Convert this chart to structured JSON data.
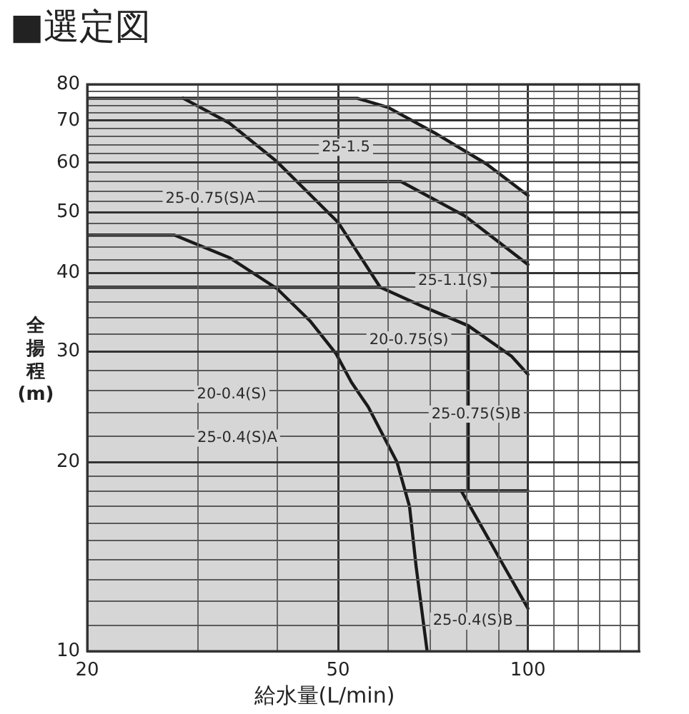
{
  "chart_data": {
    "type": "line",
    "title": "■選定図",
    "xlabel": "給水量(L/min)",
    "ylabel": "全揚程(m)",
    "log": "xy",
    "grid": true,
    "marker": "none",
    "xlim": [
      20,
      150
    ],
    "ylim": [
      10,
      80
    ],
    "xticks": [
      20,
      {
        "value": 30,
        "label": null
      },
      {
        "value": 40,
        "label": null
      },
      50,
      {
        "value": 60,
        "label": null
      },
      {
        "value": 70,
        "label": null
      },
      {
        "value": 80,
        "label": null
      },
      {
        "value": 90,
        "label": null
      },
      100,
      {
        "value": 110,
        "label": null
      },
      {
        "value": 120,
        "label": null
      },
      {
        "value": 130,
        "label": null
      },
      {
        "value": 140,
        "label": null
      }
    ],
    "yticks": [
      10,
      {
        "value": 11,
        "label": null
      },
      {
        "value": 12,
        "label": null
      },
      {
        "value": 13,
        "label": null
      },
      {
        "value": 14,
        "label": null
      },
      {
        "value": 15,
        "label": null
      },
      {
        "value": 16,
        "label": null
      },
      {
        "value": 17,
        "label": null
      },
      {
        "value": 18,
        "label": null
      },
      {
        "value": 19,
        "label": null
      },
      20,
      {
        "value": 22,
        "label": null
      },
      {
        "value": 24,
        "label": null
      },
      {
        "value": 26,
        "label": null
      },
      {
        "value": 28,
        "label": null
      },
      30,
      {
        "value": 32,
        "label": null
      },
      {
        "value": 34,
        "label": null
      },
      {
        "value": 36,
        "label": null
      },
      {
        "value": 38,
        "label": null
      },
      40,
      {
        "value": 42,
        "label": null
      },
      {
        "value": 44,
        "label": null
      },
      {
        "value": 46,
        "label": null
      },
      {
        "value": 48,
        "label": null
      },
      50,
      {
        "value": 52,
        "label": null
      },
      {
        "value": 54,
        "label": null
      },
      {
        "value": 56,
        "label": null
      },
      {
        "value": 58,
        "label": null
      },
      60,
      {
        "value": 62,
        "label": null
      },
      {
        "value": 64,
        "label": null
      },
      {
        "value": 66,
        "label": null
      },
      {
        "value": 68,
        "label": null
      },
      70,
      {
        "value": 72,
        "label": null
      },
      {
        "value": 74,
        "label": null
      },
      {
        "value": 76,
        "label": null
      },
      {
        "value": 78,
        "label": null
      },
      80
    ],
    "series": [
      {
        "type": "area",
        "color": "#d6d6d6",
        "x": [
          20,
          53.6,
          60,
          71,
          86,
          100
        ],
        "values": [
          76,
          76,
          73.5,
          67,
          59.7,
          53.2
        ]
      },
      {
        "color": "#1a1a1a",
        "x": [
          28.4,
          33.6,
          40,
          50,
          58.3,
          68.6,
          80.4,
          94.2,
          100
        ],
        "values": [
          76,
          69.4,
          60.2,
          48.2,
          38,
          35.3,
          33,
          29.5,
          27.6
        ]
      },
      {
        "color": "#1a1a1a",
        "x": [
          20,
          58.3
        ],
        "values": [
          38,
          38
        ]
      },
      {
        "color": "#1a1a1a",
        "x": [
          43.5,
          62.9,
          79.3,
          100
        ],
        "values": [
          56,
          56,
          49.4,
          41.3
        ]
      },
      {
        "color": "#1a1a1a",
        "x": [
          20,
          27.5,
          33.7,
          40,
          45.1,
          49.6,
          52.5,
          55.8,
          62,
          64.9,
          66.5,
          69.2
        ],
        "values": [
          46,
          46,
          42.3,
          37.8,
          33.6,
          29.8,
          26.8,
          24.5,
          20,
          17,
          13.6,
          10
        ]
      },
      {
        "color": "#1a1a1a",
        "x": [
          80.4,
          80.4
        ],
        "values": [
          33,
          18
        ]
      },
      {
        "color": "#1a1a1a",
        "x": [
          63.9,
          100
        ],
        "values": [
          18,
          18
        ]
      },
      {
        "color": "#1a1a1a",
        "x": [
          78.4,
          85,
          92.6,
          100
        ],
        "values": [
          18,
          15.6,
          13.4,
          11.7
        ]
      }
    ],
    "annotations": [
      "25-1.5",
      "25-0.75(S)A",
      "25-1.1(S)",
      "20-0.75(S)",
      "20-0.4(S)",
      "25-0.4(S)A",
      "25-0.75(S)B",
      "25-0.4(S)B"
    ]
  }
}
